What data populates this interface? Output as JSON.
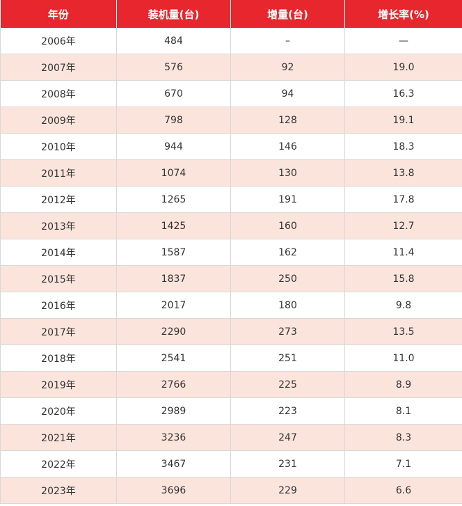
{
  "table": {
    "header": [
      "年份",
      "装机量(台)",
      "增量(台)",
      "增长率(%)"
    ],
    "rows": [
      [
        "2006年",
        "484",
        "–",
        "—"
      ],
      [
        "2007年",
        "576",
        "92",
        "19.0"
      ],
      [
        "2008年",
        "670",
        "94",
        "16.3"
      ],
      [
        "2009年",
        "798",
        "128",
        "19.1"
      ],
      [
        "2010年",
        "944",
        "146",
        "18.3"
      ],
      [
        "2011年",
        "1074",
        "130",
        "13.8"
      ],
      [
        "2012年",
        "1265",
        "191",
        "17.8"
      ],
      [
        "2013年",
        "1425",
        "160",
        "12.7"
      ],
      [
        "2014年",
        "1587",
        "162",
        "11.4"
      ],
      [
        "2015年",
        "1837",
        "250",
        "15.8"
      ],
      [
        "2016年",
        "2017",
        "180",
        "9.8"
      ],
      [
        "2017年",
        "2290",
        "273",
        "13.5"
      ],
      [
        "2018年",
        "2541",
        "251",
        "11.0"
      ],
      [
        "2019年",
        "2766",
        "225",
        "8.9"
      ],
      [
        "2020年",
        "2989",
        "223",
        "8.1"
      ],
      [
        "2021年",
        "3236",
        "247",
        "8.3"
      ],
      [
        "2022年",
        "3467",
        "231",
        "7.1"
      ],
      [
        "2023年",
        "3696",
        "229",
        "6.6"
      ]
    ]
  }
}
